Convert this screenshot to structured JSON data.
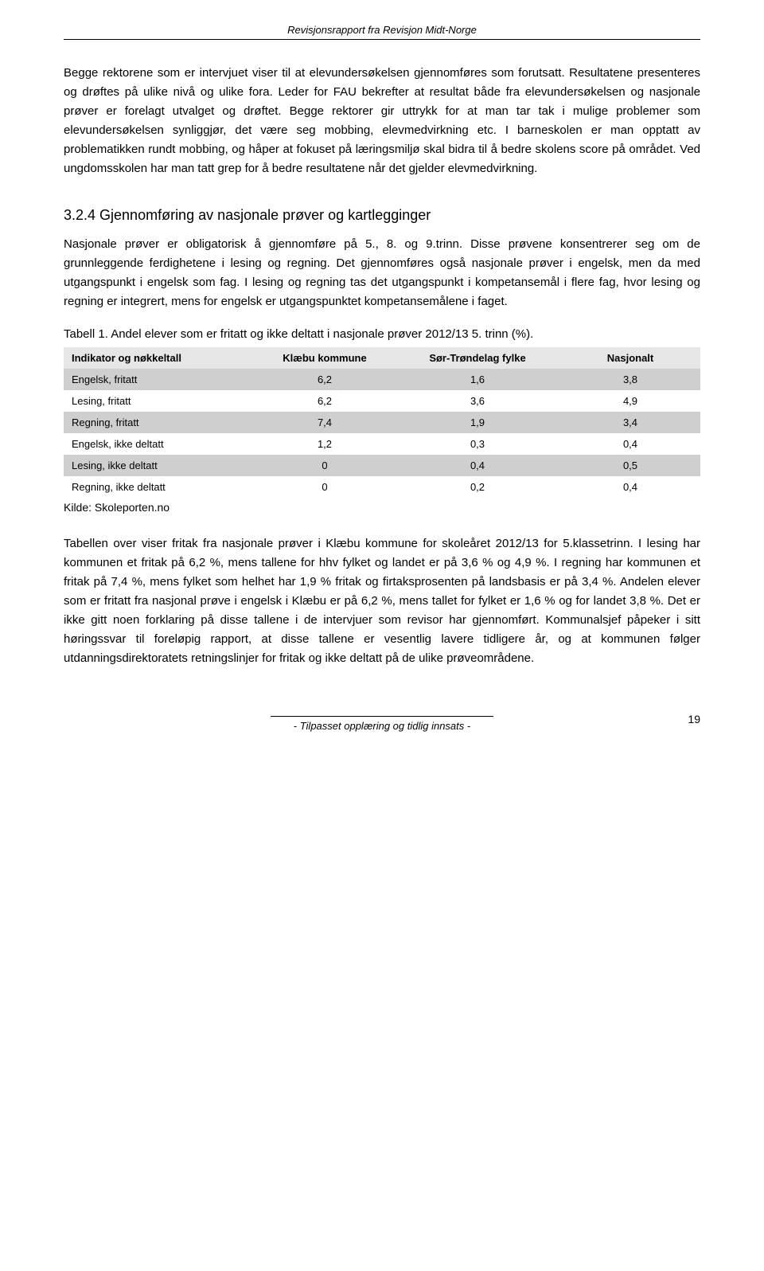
{
  "header": "Revisjonsrapport fra Revisjon Midt-Norge",
  "para1": "Begge rektorene som er intervjuet viser til at elevundersøkelsen gjennomføres som forutsatt. Resultatene presenteres og drøftes på ulike nivå og ulike fora. Leder for FAU bekrefter at resultat både fra elevundersøkelsen og nasjonale prøver er forelagt utvalget og drøftet. Begge rektorer gir uttrykk for at man tar tak i mulige problemer som elevundersøkelsen synliggjør, det være seg mobbing, elevmedvirkning etc. I barneskolen er man opptatt av problematikken rundt mobbing, og håper at fokuset på læringsmiljø skal bidra til å bedre skolens score på området. Ved ungdomsskolen har man tatt grep for å bedre resultatene når det gjelder elevmedvirkning.",
  "section_heading": "3.2.4 Gjennomføring av nasjonale prøver og kartlegginger",
  "para2": "Nasjonale prøver er obligatorisk å gjennomføre på 5., 8. og 9.trinn. Disse prøvene konsentrerer seg om de grunnleggende ferdighetene i lesing og regning. Det gjennomføres også nasjonale prøver i engelsk, men da med utgangspunkt i engelsk som fag. I lesing og regning tas det utgangspunkt i kompetansemål i flere fag, hvor lesing og regning er integrert, mens for engelsk er utgangspunktet kompetansemålene i faget.",
  "table_caption": "Tabell 1. Andel elever som er fritatt og ikke deltatt i nasjonale prøver 2012/13 5. trinn (%).",
  "table": {
    "columns": [
      "Indikator og nøkkeltall",
      "Klæbu kommune",
      "Sør-Trøndelag fylke",
      "Nasjonalt"
    ],
    "col_widths": [
      "30%",
      "22%",
      "26%",
      "22%"
    ],
    "header_bg": "#e6e6e6",
    "shaded_bg": "#cfcfcf",
    "plain_bg": "#ffffff",
    "rows": [
      {
        "shaded": true,
        "cells": [
          "Engelsk, fritatt",
          "6,2",
          "1,6",
          "3,8"
        ]
      },
      {
        "shaded": false,
        "cells": [
          "Lesing, fritatt",
          "6,2",
          "3,6",
          "4,9"
        ]
      },
      {
        "shaded": true,
        "cells": [
          "Regning, fritatt",
          "7,4",
          "1,9",
          "3,4"
        ]
      },
      {
        "shaded": false,
        "cells": [
          "Engelsk, ikke deltatt",
          "1,2",
          "0,3",
          "0,4"
        ]
      },
      {
        "shaded": true,
        "cells": [
          "Lesing, ikke deltatt",
          "0",
          "0,4",
          "0,5"
        ]
      },
      {
        "shaded": false,
        "cells": [
          "Regning, ikke deltatt",
          "0",
          "0,2",
          "0,4"
        ]
      }
    ]
  },
  "source": "Kilde: Skoleporten.no",
  "para3": "Tabellen over viser fritak fra nasjonale prøver i Klæbu kommune for skoleåret 2012/13 for 5.klassetrinn. I lesing har kommunen et fritak på 6,2 %, mens tallene for hhv fylket og landet er på 3,6 % og 4,9 %. I regning har kommunen et fritak på 7,4 %, mens fylket som helhet har 1,9 % fritak og firtaksprosenten på landsbasis er på 3,4 %. Andelen elever som er fritatt fra nasjonal prøve i engelsk i Klæbu er på 6,2 %, mens tallet for fylket er 1,6 % og for landet 3,8 %. Det er ikke gitt noen forklaring på disse tallene i de intervjuer som revisor har gjennomført. Kommunalsjef påpeker i sitt høringssvar til foreløpig rapport, at disse tallene er vesentlig lavere tidligere år, og at kommunen følger utdanningsdirektoratets retningslinjer for fritak og ikke deltatt på de ulike prøveområdene.",
  "footer": "- Tilpasset opplæring og tidlig innsats -",
  "page_number": "19"
}
